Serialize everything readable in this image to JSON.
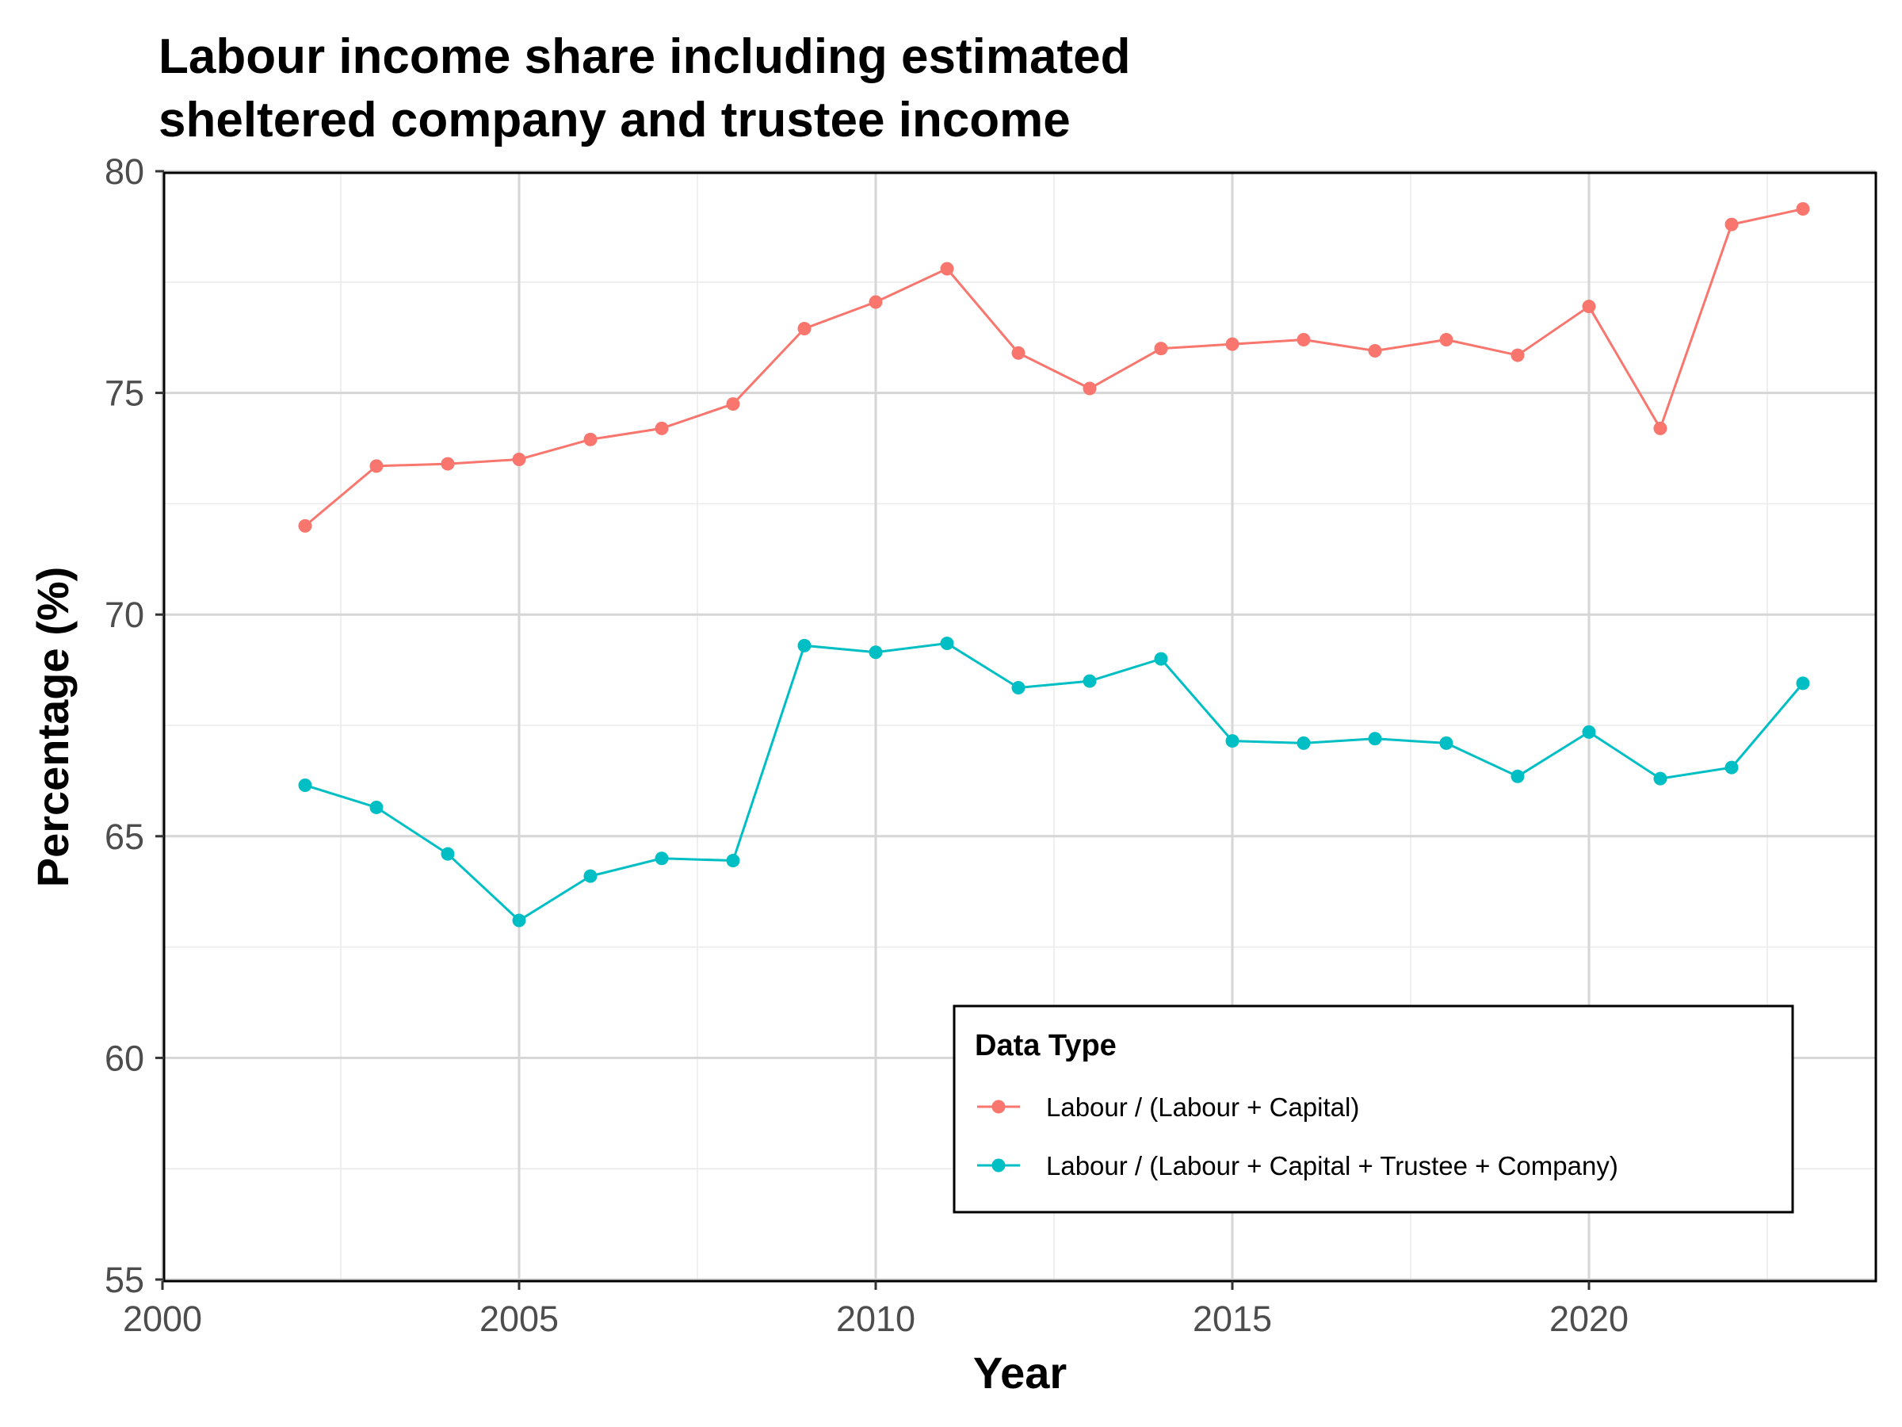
{
  "chart_data": {
    "type": "line",
    "title_lines": [
      "Labour income share including estimated",
      "sheltered company and trustee income"
    ],
    "xlabel": "Year",
    "ylabel": "Percentage (%)",
    "xlim": [
      2000,
      2024
    ],
    "ylim": [
      55,
      80
    ],
    "x_ticks": [
      2000,
      2005,
      2010,
      2015,
      2020
    ],
    "y_ticks": [
      55,
      60,
      65,
      70,
      75,
      80
    ],
    "grid": true,
    "legend": {
      "title": "Data Type",
      "position": "bottom-right"
    },
    "x": [
      2002,
      2003,
      2004,
      2005,
      2006,
      2007,
      2008,
      2009,
      2010,
      2011,
      2012,
      2013,
      2014,
      2015,
      2016,
      2017,
      2018,
      2019,
      2020,
      2021,
      2022,
      2023
    ],
    "series": [
      {
        "name": "Labour / (Labour + Capital)",
        "color": "#f8766d",
        "values": [
          72.0,
          73.35,
          73.4,
          73.5,
          73.95,
          74.2,
          74.75,
          76.45,
          77.05,
          77.8,
          75.9,
          75.1,
          76.0,
          76.1,
          76.2,
          75.95,
          76.2,
          75.85,
          76.95,
          74.2,
          78.8,
          79.15
        ]
      },
      {
        "name": "Labour / (Labour + Capital + Trustee + Company)",
        "color": "#00bfc4",
        "values": [
          66.15,
          65.65,
          64.6,
          63.1,
          64.1,
          64.5,
          64.45,
          69.3,
          69.15,
          69.35,
          68.35,
          68.5,
          69.0,
          67.15,
          67.1,
          67.2,
          67.1,
          66.35,
          67.35,
          66.3,
          66.55,
          68.45
        ]
      }
    ]
  }
}
